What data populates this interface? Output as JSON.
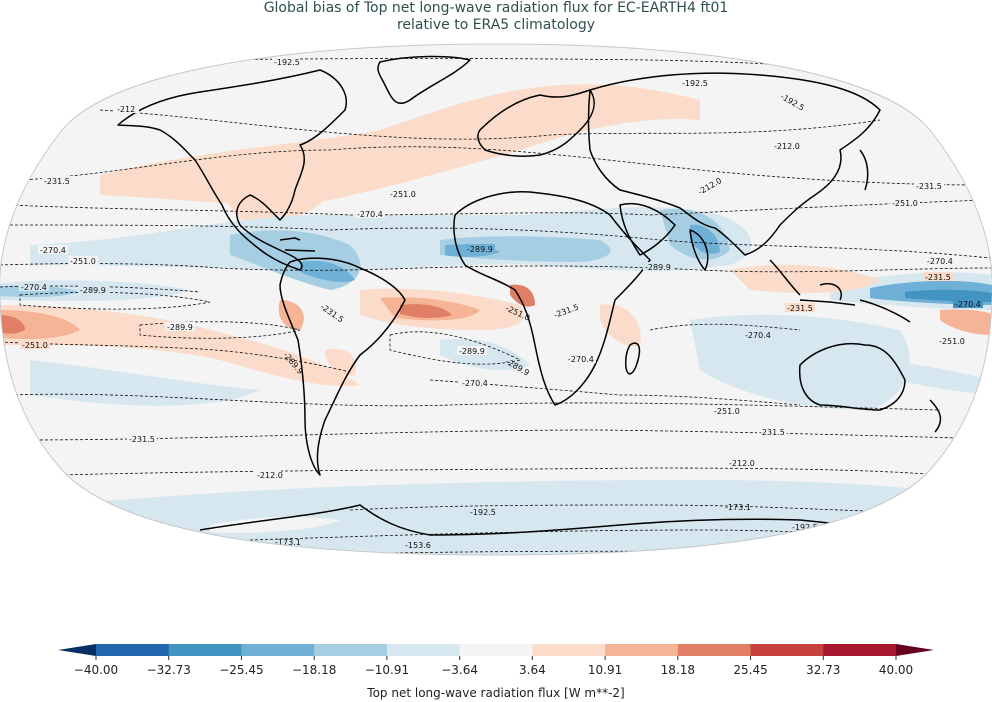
{
  "title": {
    "line1": "Global bias of Top net long-wave radiation flux for EC-EARTH4 ft01",
    "line2": "relative to ERA5 climatology"
  },
  "colorbar": {
    "label": "Top net long-wave radiation flux [W m**-2]",
    "ticks": [
      "−40.00",
      "−32.73",
      "−25.45",
      "−18.18",
      "−10.91",
      "−3.64",
      "3.64",
      "10.91",
      "18.18",
      "25.45",
      "32.73",
      "40.00"
    ],
    "colors": [
      "#053061",
      "#2166ac",
      "#4393c3",
      "#6fb0d6",
      "#a6cee3",
      "#d6e7f0",
      "#f4f4f4",
      "#fbdcca",
      "#f4b495",
      "#e07f65",
      "#c7423f",
      "#a6172d",
      "#67001f"
    ],
    "extend": "both"
  },
  "chart_data": {
    "type": "heatmap",
    "title": "Global bias of Top net long-wave radiation flux for EC-EARTH4 ft01 relative to ERA5 climatology",
    "projection": "Robinson (global map with coastlines)",
    "colorbar_label": "Top net long-wave radiation flux [W m**-2]",
    "color_levels": [
      -40.0,
      -32.73,
      -25.45,
      -18.18,
      -10.91,
      -3.64,
      3.64,
      10.91,
      18.18,
      25.45,
      32.73,
      40.0
    ],
    "colormap": "RdBu_r",
    "vrange": [
      -40,
      40
    ],
    "contour_levels_climatology": [
      -153.6,
      -173.1,
      -192.5,
      -212.0,
      -231.5,
      -251.0,
      -270.4,
      -289.9
    ],
    "contour_labels_visible": [
      {
        "value": "-192.5",
        "region": "Arctic / north Atlantic"
      },
      {
        "value": "-212.0",
        "region": "Alaska"
      },
      {
        "value": "-231.5",
        "region": "North Pacific"
      },
      {
        "value": "-251.0",
        "region": "North Atlantic"
      },
      {
        "value": "-270.4",
        "region": "Subtropical Atlantic"
      },
      {
        "value": "-270.4",
        "region": "Central Pacific north"
      },
      {
        "value": "-251.0",
        "region": "East Pacific"
      },
      {
        "value": "-270.4",
        "region": "Equatorial Pacific west"
      },
      {
        "value": "-289.9",
        "region": "Equatorial Pacific"
      },
      {
        "value": "-289.9",
        "region": "Southeast Pacific"
      },
      {
        "value": "-251.0",
        "region": "Southeast Pacific coast"
      },
      {
        "value": "-231.5",
        "region": "Northern South America"
      },
      {
        "value": "-289.9",
        "region": "Peru coast"
      },
      {
        "value": "-289.9",
        "region": "West Africa"
      },
      {
        "value": "-289.9",
        "region": "Arabian Sea"
      },
      {
        "value": "-251.0",
        "region": "Gulf of Guinea"
      },
      {
        "value": "-231.5",
        "region": "Central Africa"
      },
      {
        "value": "-289.9",
        "region": "South Atlantic"
      },
      {
        "value": "-270.4",
        "region": "South Atlantic"
      },
      {
        "value": "-270.4",
        "region": "Southern Africa"
      },
      {
        "value": "-270.4",
        "region": "Indian Ocean"
      },
      {
        "value": "-231.5",
        "region": "Maritime continent"
      },
      {
        "value": "-270.4",
        "region": "Western Pacific"
      },
      {
        "value": "-251.0",
        "region": "Southwest Pacific"
      },
      {
        "value": "-212.0",
        "region": "Central Asia / Tibet"
      },
      {
        "value": "-212.0",
        "region": "Siberia"
      },
      {
        "value": "-192.5",
        "region": "Siberia"
      },
      {
        "value": "-231.5",
        "region": "North Pacific west"
      },
      {
        "value": "-251.0",
        "region": "North Pacific west"
      },
      {
        "value": "-251.0",
        "region": "Southern Ocean north"
      },
      {
        "value": "-231.5",
        "region": "Southern Ocean"
      },
      {
        "value": "-212.0",
        "region": "Southern Ocean"
      },
      {
        "value": "-192.5",
        "region": "Antarctica coast"
      },
      {
        "value": "-173.1",
        "region": "Antarctica"
      },
      {
        "value": "-153.6",
        "region": "Antarctica interior"
      }
    ],
    "bias_features": [
      {
        "region": "Equatorial Atlantic / Gulf of Guinea",
        "bias": "positive",
        "approx": 25
      },
      {
        "region": "Eastern tropical Pacific (south of equator)",
        "bias": "positive",
        "approx": 20
      },
      {
        "region": "North Atlantic / North America / Europe band",
        "bias": "positive",
        "approx": 6
      },
      {
        "region": "Western Pacific warm pool",
        "bias": "negative",
        "approx": -25
      },
      {
        "region": "Sahel / West Africa",
        "bias": "negative",
        "approx": -20
      },
      {
        "region": "India / Arabian Sea",
        "bias": "negative",
        "approx": -20
      },
      {
        "region": "Caribbean / Central America",
        "bias": "negative",
        "approx": -15
      },
      {
        "region": "Southern Ocean / Antarctica",
        "bias": "negative",
        "approx": -6
      },
      {
        "region": "Australia",
        "bias": "negative",
        "approx": -6
      }
    ]
  }
}
